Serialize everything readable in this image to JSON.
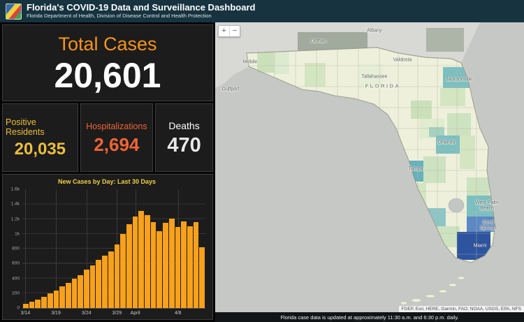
{
  "header": {
    "title": "Florida's COVID-19 Data and Surveillance Dashboard",
    "subtitle": "Florida Department of Health, Division of Disease Control and Health Protection"
  },
  "stats": {
    "total_cases_label": "Total Cases",
    "total_cases_value": "20,601",
    "positive_residents_label": "Positive Residents",
    "positive_residents_value": "20,035",
    "hospitalizations_label": "Hospitalizations",
    "hospitalizations_value": "2,694",
    "deaths_label": "Deaths",
    "deaths_value": "470"
  },
  "chart_data": {
    "type": "bar",
    "title": "New Cases by Day: Last 30 Days",
    "xlabel": "",
    "ylabel": "",
    "ylim": [
      0,
      1600
    ],
    "grid": true,
    "x": [
      "3/14",
      "3/15",
      "3/16",
      "3/17",
      "3/18",
      "3/19",
      "3/20",
      "3/21",
      "3/22",
      "3/23",
      "3/24",
      "3/25",
      "3/26",
      "3/27",
      "3/28",
      "3/29",
      "3/30",
      "3/31",
      "4/1",
      "4/2",
      "4/3",
      "4/4",
      "4/5",
      "4/6",
      "4/7",
      "4/8",
      "4/9",
      "4/10",
      "4/11",
      "4/12"
    ],
    "values": [
      60,
      85,
      115,
      150,
      195,
      240,
      290,
      340,
      400,
      445,
      520,
      575,
      650,
      705,
      765,
      860,
      1000,
      1130,
      1235,
      1305,
      1250,
      1160,
      1035,
      1150,
      1205,
      1095,
      1170,
      1105,
      1160,
      815
    ],
    "yticks": [
      "0",
      "200",
      "400",
      "600",
      "800",
      "1k",
      "1.2k",
      "1.4k",
      "1.6k"
    ],
    "xticks": [
      {
        "label": "3/14",
        "index": 0
      },
      {
        "label": "3/19",
        "index": 5
      },
      {
        "label": "3/24",
        "index": 10
      },
      {
        "label": "3/29",
        "index": 15
      },
      {
        "label": "April",
        "index": 18
      },
      {
        "label": "4/8",
        "index": 25
      }
    ],
    "bar_color": "#f9a11c"
  },
  "map": {
    "state_label": "FLORIDA",
    "cities": [
      "Albany",
      "Dothan",
      "Mobile",
      "Valdosta",
      "Gulfport",
      "Tallahassee",
      "Jacksonville",
      "Orlando",
      "Tampa",
      "West Palm Beach",
      "Coral Springs",
      "Miami"
    ],
    "controls": {
      "zoom_in": "+",
      "zoom_out": "−"
    },
    "attribution": "FDEP, Esri, HERE, Garmin, FAO, NOAA, USGS, EPA, NFS",
    "footer": "Florida case data is updated at approximately 11:30 a.m. and 6:30 p.m. daily."
  },
  "colors": {
    "header_bg": "#16333f",
    "panel_bg": "#1c1c1c",
    "total_cases": "#f7941e",
    "positive_residents": "#ecbe3d",
    "hospitalizations": "#ef6434",
    "deaths": "#ffffff",
    "chart_title": "#f3cf45",
    "bar": "#f9a11c",
    "choropleth": [
      "#eef0dc",
      "#cfe3c0",
      "#8ec6c6",
      "#7dbfc1",
      "#5c88c4",
      "#2e54a0"
    ]
  }
}
